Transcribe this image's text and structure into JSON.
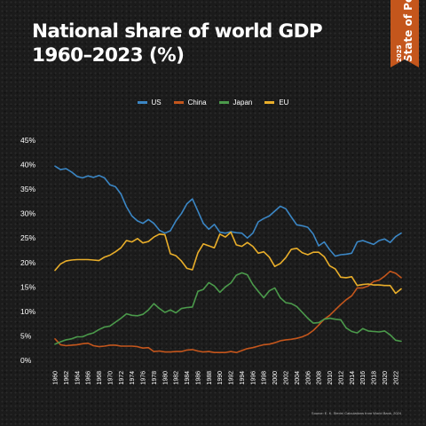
{
  "badge": {
    "year": "2025",
    "name": "State of Power"
  },
  "title_line1": "National share of world GDP",
  "title_line2": "1960–2023 (%)",
  "source": "Source: E. K. Sterin/ Calculations from World Bank, 2024",
  "colors": {
    "US": "#3b86c4",
    "China": "#c4561c",
    "Japan": "#4b9a4b",
    "EU": "#e9ae2a"
  },
  "chart_data": {
    "type": "line",
    "title": "National share of world GDP 1960–2023 (%)",
    "xlabel": "",
    "ylabel": "",
    "ylim": [
      0,
      45
    ],
    "yticks": [
      "0%",
      "5%",
      "10%",
      "15%",
      "20%",
      "25%",
      "30%",
      "35%",
      "40%",
      "45%"
    ],
    "xticks": [
      "1960",
      "1962",
      "1964",
      "1966",
      "1968",
      "1970",
      "1972",
      "1974",
      "1976",
      "1978",
      "1980",
      "1982",
      "1984",
      "1986",
      "1988",
      "1990",
      "1992",
      "1994",
      "1996",
      "1998",
      "2000",
      "2002",
      "2004",
      "2006",
      "2008",
      "2010",
      "2012",
      "2014",
      "2016",
      "2018",
      "2020",
      "2022"
    ],
    "x": [
      1960,
      1961,
      1962,
      1963,
      1964,
      1965,
      1966,
      1967,
      1968,
      1969,
      1970,
      1971,
      1972,
      1973,
      1974,
      1975,
      1976,
      1977,
      1978,
      1979,
      1980,
      1981,
      1982,
      1983,
      1984,
      1985,
      1986,
      1987,
      1988,
      1989,
      1990,
      1991,
      1992,
      1993,
      1994,
      1995,
      1996,
      1997,
      1998,
      1999,
      2000,
      2001,
      2002,
      2003,
      2004,
      2005,
      2006,
      2007,
      2008,
      2009,
      2010,
      2011,
      2012,
      2013,
      2014,
      2015,
      2016,
      2017,
      2018,
      2019,
      2020,
      2021,
      2022,
      2023
    ],
    "legend_position": "top",
    "grid": false,
    "series": [
      {
        "name": "US",
        "values": [
          39.7,
          39.0,
          39.2,
          38.5,
          37.6,
          37.3,
          37.7,
          37.4,
          37.8,
          37.3,
          35.9,
          35.5,
          34.0,
          31.4,
          29.5,
          28.5,
          28.0,
          28.8,
          28.0,
          26.6,
          26.0,
          26.5,
          28.5,
          30.0,
          32.0,
          33.0,
          30.5,
          28.0,
          26.8,
          27.8,
          26.2,
          26.0,
          26.3,
          26.1,
          26.0,
          25.0,
          26.0,
          28.3,
          29.0,
          29.5,
          30.5,
          31.5,
          31.0,
          29.3,
          27.7,
          27.5,
          27.2,
          25.8,
          23.4,
          24.2,
          22.6,
          21.3,
          21.6,
          21.7,
          21.9,
          24.2,
          24.5,
          24.1,
          23.7,
          24.5,
          24.8,
          24.1,
          25.3,
          26.0
        ]
      },
      {
        "name": "China",
        "values": [
          4.4,
          3.2,
          3.0,
          3.1,
          3.2,
          3.4,
          3.5,
          3.0,
          2.8,
          2.9,
          3.1,
          3.1,
          2.9,
          2.9,
          2.9,
          2.8,
          2.5,
          2.6,
          1.8,
          1.9,
          1.7,
          1.7,
          1.8,
          1.8,
          2.1,
          2.2,
          1.9,
          1.7,
          1.8,
          1.6,
          1.6,
          1.6,
          1.8,
          1.6,
          2.0,
          2.4,
          2.6,
          2.9,
          3.2,
          3.3,
          3.6,
          4.0,
          4.2,
          4.3,
          4.5,
          4.8,
          5.3,
          6.1,
          7.2,
          8.4,
          9.2,
          10.3,
          11.4,
          12.4,
          13.2,
          14.8,
          14.8,
          15.2,
          16.1,
          16.4,
          17.2,
          18.2,
          17.8,
          16.9
        ]
      },
      {
        "name": "Japan",
        "values": [
          3.3,
          3.8,
          4.2,
          4.4,
          4.8,
          4.8,
          5.3,
          5.6,
          6.3,
          6.8,
          7.0,
          7.8,
          8.6,
          9.5,
          9.2,
          9.1,
          9.4,
          10.3,
          11.6,
          10.6,
          9.8,
          10.3,
          9.7,
          10.6,
          10.8,
          10.9,
          14.1,
          14.5,
          15.9,
          15.2,
          13.9,
          15.0,
          15.8,
          17.4,
          17.9,
          17.5,
          15.5,
          14.1,
          12.8,
          14.2,
          14.8,
          12.8,
          11.8,
          11.6,
          11.0,
          9.8,
          8.6,
          7.6,
          7.7,
          8.4,
          8.6,
          8.4,
          8.3,
          6.6,
          5.9,
          5.6,
          6.5,
          6.0,
          5.9,
          5.8,
          6.0,
          5.2,
          4.1,
          3.9
        ]
      },
      {
        "name": "EU",
        "values": [
          18.4,
          19.7,
          20.3,
          20.5,
          20.6,
          20.6,
          20.6,
          20.5,
          20.4,
          21.1,
          21.5,
          22.2,
          23.0,
          24.5,
          24.2,
          24.9,
          24.0,
          24.3,
          25.2,
          25.8,
          25.7,
          21.8,
          21.4,
          20.3,
          18.8,
          18.5,
          22.0,
          23.8,
          23.4,
          23.0,
          25.8,
          25.2,
          26.2,
          23.6,
          23.3,
          24.1,
          23.3,
          21.9,
          22.2,
          21.1,
          19.2,
          19.8,
          21.0,
          22.7,
          22.9,
          22.0,
          21.6,
          22.1,
          22.1,
          21.2,
          19.3,
          18.7,
          17.0,
          16.9,
          17.1,
          15.3,
          15.5,
          15.6,
          15.4,
          15.4,
          15.3,
          15.3,
          13.7,
          14.6
        ]
      }
    ]
  }
}
